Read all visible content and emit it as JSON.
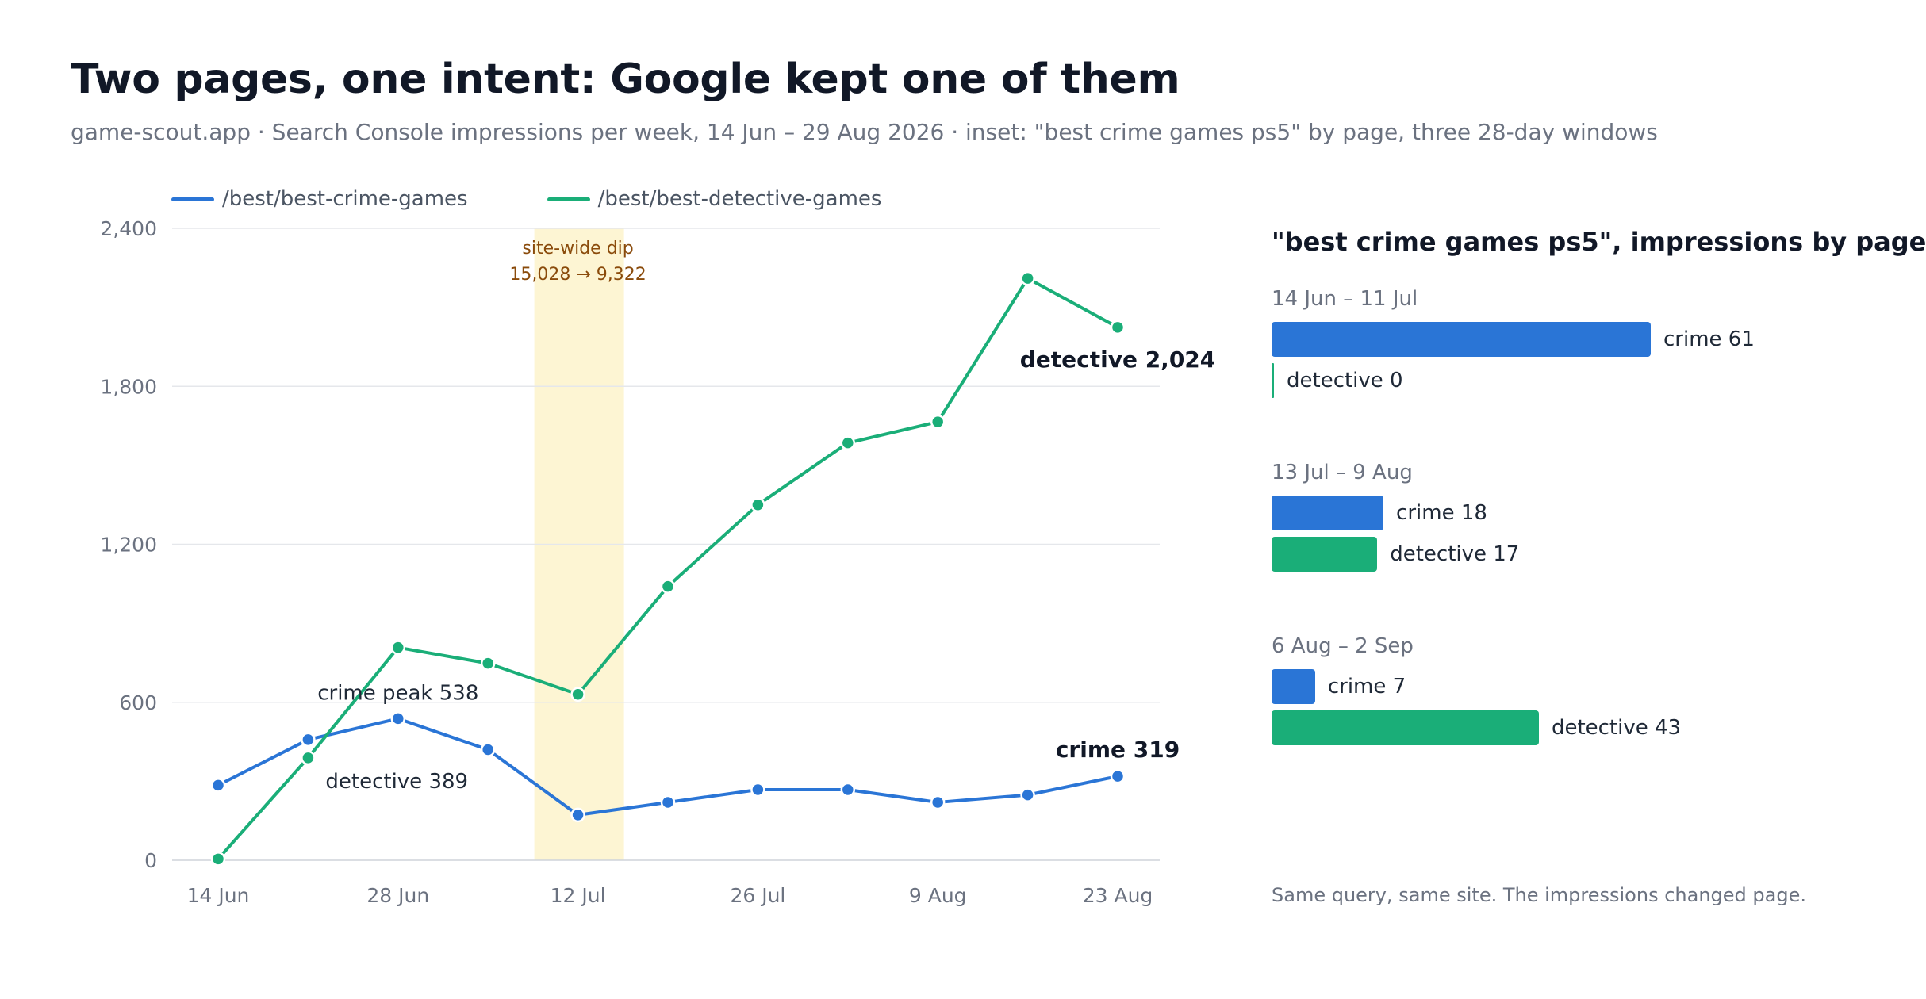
{
  "title": "Two pages, one intent: Google kept one of them",
  "subtitle": "game-scout.app · Search Console impressions per week, 14 Jun – 29 Aug 2026 · inset: \"best crime games ps5\" by page, three 28-day windows",
  "legend": [
    {
      "label": "/best/best-crime-games",
      "color": "#2a75d6"
    },
    {
      "label": "/best/best-detective-games",
      "color": "#1aae78"
    }
  ],
  "chart_data": [
    {
      "type": "line",
      "x": [
        "14 Jun",
        "21 Jun",
        "28 Jun",
        "5 Jul",
        "12 Jul",
        "19 Jul",
        "26 Jul",
        "2 Aug",
        "9 Aug",
        "16 Aug",
        "23 Aug"
      ],
      "xticks": [
        "14 Jun",
        "28 Jun",
        "12 Jul",
        "26 Jul",
        "9 Aug",
        "23 Aug"
      ],
      "yticks": [
        "0",
        "600",
        "1,200",
        "1,800",
        "2,400"
      ],
      "ylim": [
        0,
        2400
      ],
      "grid": true,
      "legend_position": "top-left",
      "series": [
        {
          "name": "/best/best-crime-games",
          "color": "#2a75d6",
          "values": [
            285,
            458,
            538,
            420,
            172,
            220,
            268,
            268,
            220,
            248,
            319
          ]
        },
        {
          "name": "/best/best-detective-games",
          "color": "#1aae78",
          "values": [
            5,
            389,
            808,
            748,
            630,
            1040,
            1350,
            1585,
            1665,
            2210,
            2024
          ]
        }
      ],
      "highlight": {
        "from": "12 Jul",
        "label_line1": "site-wide dip",
        "label_line2": "15,028 → 9,322",
        "color": "#fdf5d3",
        "text_color": "#8a4b0b"
      },
      "annotations": [
        {
          "text": "crime peak 538",
          "series": 0,
          "index": 2,
          "bold": false
        },
        {
          "text": "detective 389",
          "series": 1,
          "index": 1,
          "bold": false
        },
        {
          "text": "detective 2,024",
          "series": 1,
          "index": 10,
          "bold": true
        },
        {
          "text": "crime 319",
          "series": 0,
          "index": 10,
          "bold": true
        }
      ]
    },
    {
      "type": "bar",
      "title": "\"best crime games ps5\", impressions by page",
      "xlim": [
        0,
        61
      ],
      "windows": [
        {
          "label": "14 Jun – 11 Jul",
          "bars": [
            {
              "page": "crime",
              "label": "crime 61",
              "value": 61,
              "color": "#2a75d6"
            },
            {
              "page": "detective",
              "label": "detective 0",
              "value": 0,
              "color": "#1aae78"
            }
          ]
        },
        {
          "label": "13 Jul – 9 Aug",
          "bars": [
            {
              "page": "crime",
              "label": "crime 18",
              "value": 18,
              "color": "#2a75d6"
            },
            {
              "page": "detective",
              "label": "detective 17",
              "value": 17,
              "color": "#1aae78"
            }
          ]
        },
        {
          "label": "6 Aug – 2 Sep",
          "bars": [
            {
              "page": "crime",
              "label": "crime 7",
              "value": 7,
              "color": "#2a75d6"
            },
            {
              "page": "detective",
              "label": "detective 43",
              "value": 43,
              "color": "#1aae78"
            }
          ]
        }
      ]
    }
  ],
  "footnote": "Same query, same site. The impressions changed page."
}
